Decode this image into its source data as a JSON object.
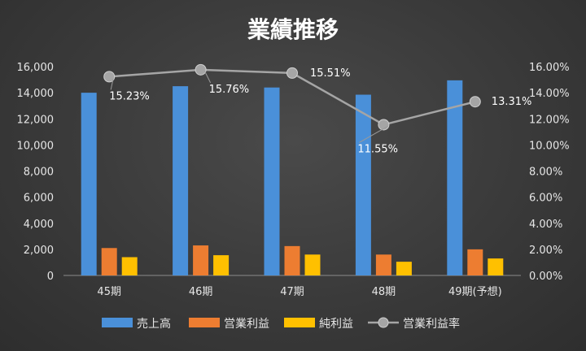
{
  "chart_data": {
    "type": "bar",
    "title": "業績推移",
    "categories": [
      "45期",
      "46期",
      "47期",
      "48期",
      "49期(予想)"
    ],
    "series": [
      {
        "name": "売上高",
        "kind": "bar",
        "axis": "left",
        "color": "#4a90d9",
        "values": [
          14000,
          14500,
          14400,
          13850,
          14950
        ]
      },
      {
        "name": "営業利益",
        "kind": "bar",
        "axis": "left",
        "color": "#ed7d31",
        "values": [
          2100,
          2300,
          2250,
          1600,
          2000
        ]
      },
      {
        "name": "純利益",
        "kind": "bar",
        "axis": "left",
        "color": "#ffc000",
        "values": [
          1400,
          1550,
          1600,
          1050,
          1300
        ]
      },
      {
        "name": "営業利益率",
        "kind": "line",
        "axis": "right",
        "color": "#a5a5a5",
        "values": [
          15.23,
          15.76,
          15.51,
          11.55,
          13.31
        ],
        "labels": [
          "15.23%",
          "15.76%",
          "15.51%",
          "11.55%",
          "13.31%"
        ]
      }
    ],
    "ylim": [
      0,
      16000
    ],
    "yticks": [
      "0",
      "2,000",
      "4,000",
      "6,000",
      "8,000",
      "10,000",
      "12,000",
      "14,000",
      "16,000"
    ],
    "y2lim": [
      0,
      16
    ],
    "y2ticks": [
      "0.00%",
      "2.00%",
      "4.00%",
      "6.00%",
      "8.00%",
      "10.00%",
      "12.00%",
      "14.00%",
      "16.00%"
    ],
    "grid": false,
    "legend": "bottom"
  }
}
